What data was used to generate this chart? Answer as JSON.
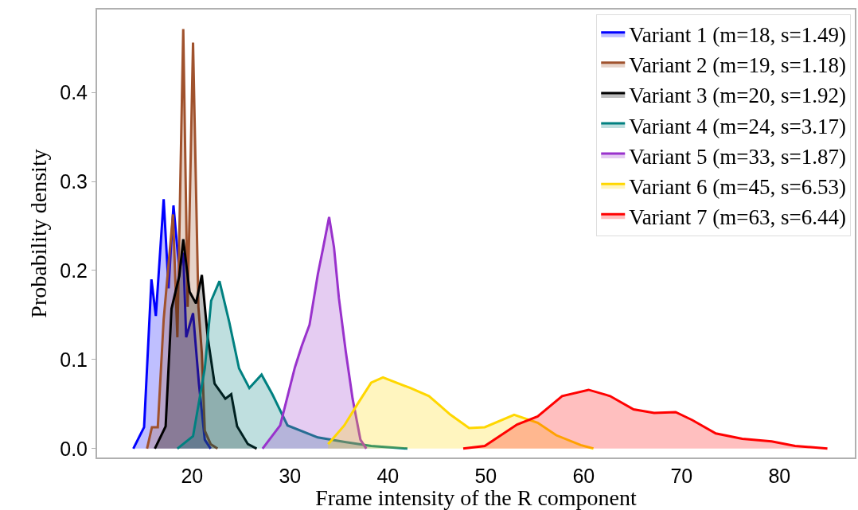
{
  "chart_data": {
    "type": "area",
    "xlabel": "Frame intensity of the R component",
    "ylabel": "Probability density",
    "xlim": [
      10.3,
      87.7
    ],
    "ylim": [
      -0.01,
      0.493
    ],
    "xticks": [
      20,
      30,
      40,
      50,
      60,
      70,
      80
    ],
    "yticks": [
      {
        "value": 0,
        "label": "0.0"
      },
      {
        "value": 0.1,
        "label": "0.1"
      },
      {
        "value": 0.2,
        "label": "0.2"
      },
      {
        "value": 0.3,
        "label": "0.3"
      },
      {
        "value": 0.4,
        "label": "0.4"
      }
    ],
    "grid": false,
    "legend": "top right",
    "series": [
      {
        "name": "Variant 1 (m=18, s=1.49)",
        "color": "#0000ff",
        "x": [
          14.0,
          15.1,
          15.85,
          16.3,
          17.1,
          17.6,
          18.1,
          18.7,
          19.1,
          19.4,
          20.1,
          20.7,
          21.3,
          21.9
        ],
        "values": [
          0,
          0.024,
          0.19,
          0.149,
          0.28,
          0.18,
          0.273,
          0.2,
          0.22,
          0.125,
          0.152,
          0.073,
          0.01,
          0
        ]
      },
      {
        "name": "Variant 2 (m=19, s=1.18)",
        "color": "#a0522d",
        "x": [
          15.4,
          15.9,
          16.5,
          17.1,
          18.05,
          18.5,
          19.1,
          19.55,
          20.1,
          20.65,
          21.0,
          21.3,
          21.9,
          22.6
        ],
        "values": [
          0,
          0.024,
          0.024,
          0.145,
          0.263,
          0.125,
          0.471,
          0.159,
          0.456,
          0.159,
          0.107,
          0.02,
          0.005,
          0
        ]
      },
      {
        "name": "Variant 3 (m=20, s=1.92)",
        "color": "#000000",
        "x": [
          16.2,
          17.3,
          17.9,
          18.7,
          19.1,
          19.75,
          20.4,
          21.0,
          21.6,
          22.3,
          23.4,
          24.0,
          24.6,
          25.7,
          26.6
        ],
        "values": [
          0,
          0.025,
          0.157,
          0.194,
          0.235,
          0.176,
          0.163,
          0.195,
          0.125,
          0.073,
          0.056,
          0.061,
          0.025,
          0.005,
          0
        ]
      },
      {
        "name": "Variant 4 (m=24, s=3.17)",
        "color": "#008080",
        "x": [
          18.5,
          20.1,
          21.3,
          21.95,
          22.8,
          23.8,
          24.8,
          25.85,
          27.1,
          28.2,
          29.75,
          32.85,
          35.6,
          38.3,
          42.0
        ],
        "values": [
          0,
          0.014,
          0.09,
          0.166,
          0.188,
          0.142,
          0.09,
          0.068,
          0.083,
          0.061,
          0.026,
          0.0125,
          0.0075,
          0.003,
          0
        ]
      },
      {
        "name": "Variant 5 (m=33, s=1.87)",
        "color": "#9932cc",
        "x": [
          27.2,
          29.0,
          30.5,
          31.2,
          32.0,
          32.85,
          33.4,
          34.0,
          34.5,
          35.0,
          35.7,
          36.4,
          37.2,
          37.8
        ],
        "values": [
          0,
          0.026,
          0.091,
          0.115,
          0.139,
          0.196,
          0.226,
          0.26,
          0.226,
          0.169,
          0.109,
          0.056,
          0.01,
          0
        ]
      },
      {
        "name": "Variant 6 (m=45, s=6.53)",
        "color": "#ffd700",
        "x": [
          33.9,
          35.55,
          36.9,
          38.3,
          39.5,
          42.3,
          44.2,
          46.4,
          48.3,
          49.9,
          52.9,
          55.3,
          57.2,
          59.7,
          61.0
        ],
        "values": [
          0.005,
          0.026,
          0.05,
          0.074,
          0.08,
          0.068,
          0.059,
          0.038,
          0.023,
          0.024,
          0.038,
          0.029,
          0.015,
          0.004,
          0
        ]
      },
      {
        "name": "Variant 7 (m=63, s=6.44)",
        "color": "#ff0000",
        "x": [
          47.7,
          49.9,
          53.2,
          55.3,
          57.8,
          60.5,
          62.7,
          65.1,
          67.2,
          69.4,
          71.1,
          73.5,
          76.2,
          79.2,
          81.6,
          84.9
        ],
        "values": [
          0,
          0.003,
          0.027,
          0.036,
          0.059,
          0.066,
          0.059,
          0.044,
          0.04,
          0.041,
          0.032,
          0.017,
          0.011,
          0.008,
          0.003,
          0
        ]
      }
    ]
  }
}
